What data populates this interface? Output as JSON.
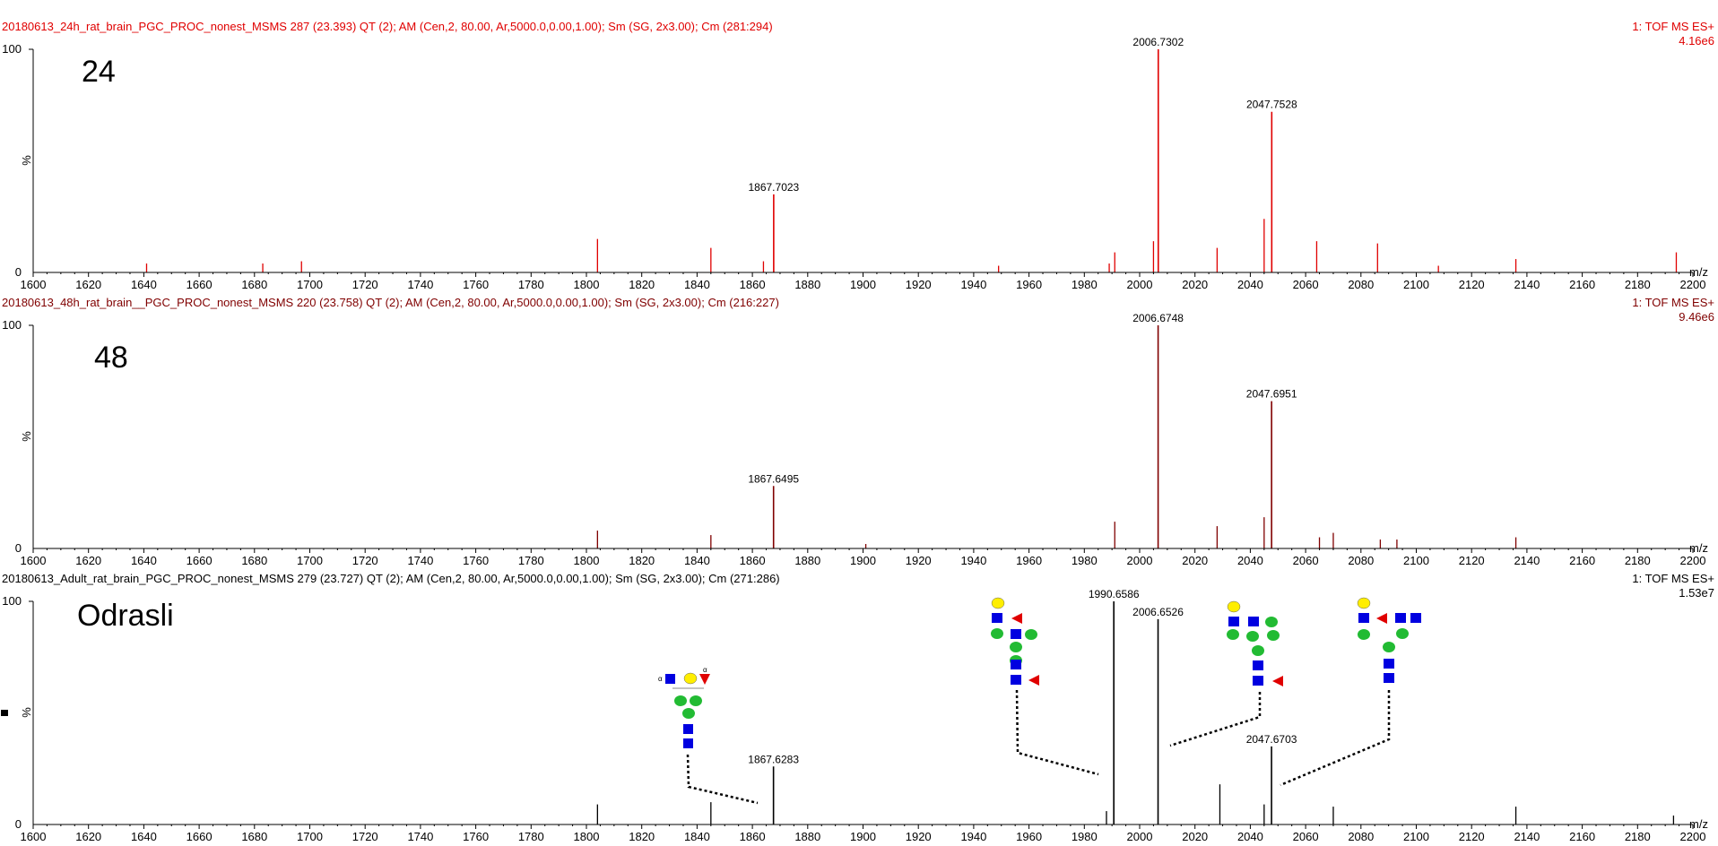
{
  "x_axis": {
    "min": 1600,
    "max": 2200,
    "tick_step": 20,
    "unit": "m/z"
  },
  "y_axis": {
    "ticks": [
      "0",
      "%",
      "100"
    ]
  },
  "panels": [
    {
      "header": "20180613_24h_rat_brain_PGC_PROC_nonest_MSMS  287 (23.393) QT (2); AM (Cen,2, 80.00, Ar,5000.0,0.00,1.00); Sm (SG, 2x3.00); Cm (281:294)",
      "scan_type": "1: TOF MS ES+",
      "max_intensity": "4.16e6",
      "big_label": "24",
      "color": "#e00000",
      "chart_data": {
        "type": "bar",
        "xlabel": "m/z",
        "ylabel": "%",
        "ylim": [
          0,
          100
        ],
        "labeled_peaks": [
          {
            "x": 2006.7302,
            "y": 100,
            "label": "2006.7302"
          },
          {
            "x": 2047.7528,
            "y": 72,
            "label": "2047.7528"
          },
          {
            "x": 1867.7023,
            "y": 35,
            "label": "1867.7023"
          }
        ],
        "peaks": [
          {
            "x": 1641,
            "y": 4
          },
          {
            "x": 1683,
            "y": 4
          },
          {
            "x": 1697,
            "y": 5
          },
          {
            "x": 1804,
            "y": 15
          },
          {
            "x": 1845,
            "y": 11
          },
          {
            "x": 1864,
            "y": 5
          },
          {
            "x": 1949,
            "y": 3
          },
          {
            "x": 1989,
            "y": 4
          },
          {
            "x": 1991,
            "y": 9
          },
          {
            "x": 2005,
            "y": 14
          },
          {
            "x": 2028,
            "y": 11
          },
          {
            "x": 2045,
            "y": 24
          },
          {
            "x": 2064,
            "y": 14
          },
          {
            "x": 2086,
            "y": 13
          },
          {
            "x": 2108,
            "y": 3
          },
          {
            "x": 2136,
            "y": 6
          },
          {
            "x": 2194,
            "y": 9
          }
        ]
      }
    },
    {
      "header": "20180613_48h_rat_brain__PGC_PROC_nonest_MSMS  220 (23.758) QT (2); AM (Cen,2, 80.00, Ar,5000.0,0.00,1.00); Sm (SG, 2x3.00); Cm (216:227)",
      "scan_type": "1: TOF MS ES+",
      "max_intensity": "9.46e6",
      "big_label": "48",
      "color": "#800000",
      "chart_data": {
        "type": "bar",
        "xlabel": "m/z",
        "ylabel": "%",
        "ylim": [
          0,
          100
        ],
        "labeled_peaks": [
          {
            "x": 2006.6748,
            "y": 100,
            "label": "2006.6748"
          },
          {
            "x": 2047.6951,
            "y": 66,
            "label": "2047.6951"
          },
          {
            "x": 1867.6495,
            "y": 28,
            "label": "1867.6495"
          }
        ],
        "peaks": [
          {
            "x": 1804,
            "y": 8
          },
          {
            "x": 1845,
            "y": 6
          },
          {
            "x": 1901,
            "y": 2
          },
          {
            "x": 1991,
            "y": 12
          },
          {
            "x": 2028,
            "y": 10
          },
          {
            "x": 2045,
            "y": 14
          },
          {
            "x": 2065,
            "y": 5
          },
          {
            "x": 2070,
            "y": 7
          },
          {
            "x": 2087,
            "y": 4
          },
          {
            "x": 2093,
            "y": 4
          },
          {
            "x": 2136,
            "y": 5
          }
        ]
      }
    },
    {
      "header": "20180613_Adult_rat_brain_PGC_PROC_nonest_MSMS  279 (23.727) QT (2); AM (Cen,2, 80.00, Ar,5000.0,0.00,1.00); Sm (SG, 2x3.00); Cm (271:286)",
      "scan_type": "1: TOF MS ES+",
      "max_intensity": "1.53e7",
      "big_label": "Odrasli",
      "color": "#000000",
      "chart_data": {
        "type": "bar",
        "xlabel": "m/z",
        "ylabel": "%",
        "ylim": [
          0,
          100
        ],
        "labeled_peaks": [
          {
            "x": 1990.6586,
            "y": 100,
            "label": "1990.6586"
          },
          {
            "x": 2006.6526,
            "y": 92,
            "label": "2006.6526"
          },
          {
            "x": 2047.6703,
            "y": 35,
            "label": "2047.6703"
          },
          {
            "x": 1867.6283,
            "y": 26,
            "label": "1867.6283"
          }
        ],
        "peaks": [
          {
            "x": 1804,
            "y": 9
          },
          {
            "x": 1845,
            "y": 10
          },
          {
            "x": 1988,
            "y": 6
          },
          {
            "x": 2029,
            "y": 18
          },
          {
            "x": 2045,
            "y": 9
          },
          {
            "x": 2070,
            "y": 8
          },
          {
            "x": 2136,
            "y": 8
          },
          {
            "x": 2193,
            "y": 4
          }
        ]
      }
    }
  ]
}
